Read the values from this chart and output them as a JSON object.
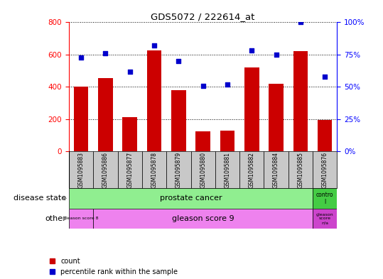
{
  "title": "GDS5072 / 222614_at",
  "samples": [
    "GSM1095883",
    "GSM1095886",
    "GSM1095877",
    "GSM1095878",
    "GSM1095879",
    "GSM1095880",
    "GSM1095881",
    "GSM1095882",
    "GSM1095884",
    "GSM1095885",
    "GSM1095876"
  ],
  "counts": [
    400,
    455,
    210,
    625,
    380,
    125,
    130,
    520,
    420,
    620,
    195
  ],
  "percentiles": [
    73,
    76,
    62,
    82,
    70,
    51,
    52,
    78,
    75,
    100,
    58
  ],
  "ylim_left": [
    0,
    800
  ],
  "ylim_right": [
    0,
    100
  ],
  "yticks_left": [
    0,
    200,
    400,
    600,
    800
  ],
  "yticks_right": [
    0,
    25,
    50,
    75,
    100
  ],
  "bar_color": "#cc0000",
  "dot_color": "#0000cc",
  "plot_bg": "#ffffff",
  "tick_bg": "#c8c8c8",
  "prostate_cancer_color": "#90ee90",
  "control_color": "#44cc44",
  "gleason8_color": "#ee82ee",
  "gleason9_color": "#ee82ee",
  "gleason_na_color": "#cc44cc",
  "legend_items": [
    {
      "label": "count",
      "color": "#cc0000"
    },
    {
      "label": "percentile rank within the sample",
      "color": "#0000cc"
    }
  ],
  "annotation_left": "disease state",
  "annotation_other": "other",
  "background_color": "#ffffff",
  "bar_width": 0.6
}
